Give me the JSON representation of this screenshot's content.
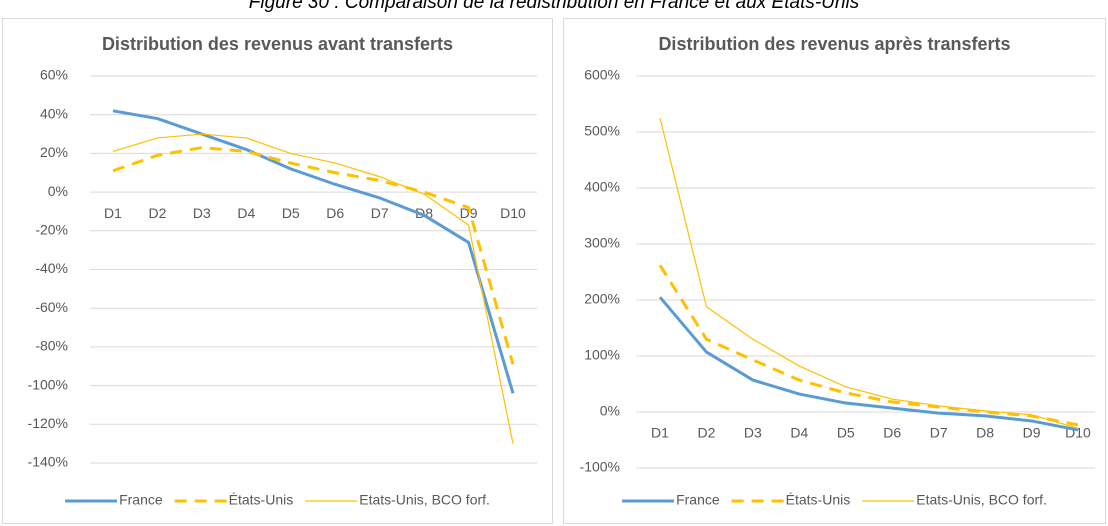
{
  "caption": "Figure 30 : Comparaison de la redistribution en France et aux Etats-Unis",
  "chart_data": [
    {
      "type": "line",
      "title": "Distribution des revenus avant transferts",
      "categories": [
        "D1",
        "D2",
        "D3",
        "D4",
        "D5",
        "D6",
        "D7",
        "D8",
        "D9",
        "D10"
      ],
      "ylim": [
        -140,
        60
      ],
      "yticks": [
        {
          "value": 60,
          "label": "60%"
        },
        {
          "value": 40,
          "label": "40%"
        },
        {
          "value": 20,
          "label": "20%"
        },
        {
          "value": 0,
          "label": "0%"
        },
        {
          "value": -20,
          "label": "-20%"
        },
        {
          "value": -40,
          "label": "-40%"
        },
        {
          "value": -60,
          "label": "-60%"
        },
        {
          "value": -80,
          "label": "-80%"
        },
        {
          "value": -100,
          "label": "-100%"
        },
        {
          "value": -120,
          "label": "-120%"
        },
        {
          "value": -140,
          "label": "-140%"
        }
      ],
      "grid": true,
      "legend": "bottom",
      "series": [
        {
          "name": "France",
          "color": "#5b9bd5",
          "line_width": 3,
          "dashed": false,
          "values": [
            42,
            38,
            30,
            22,
            12,
            4,
            -3,
            -12,
            -26,
            -104
          ]
        },
        {
          "name": "États-Unis",
          "color": "#ffc000",
          "line_width": 3,
          "dashed": true,
          "values": [
            11,
            19,
            23,
            21,
            15,
            10,
            6,
            0,
            -8,
            -89
          ]
        },
        {
          "name": "Etats-Unis, BCO forf.",
          "color": "#ffc000",
          "line_width": 1.2,
          "dashed": false,
          "values": [
            21,
            28,
            30,
            28,
            20,
            15,
            8,
            -1,
            -17,
            -130
          ]
        }
      ]
    },
    {
      "type": "line",
      "title": "Distribution des revenus après transferts",
      "categories": [
        "D1",
        "D2",
        "D3",
        "D4",
        "D5",
        "D6",
        "D7",
        "D8",
        "D9",
        "D10"
      ],
      "ylim": [
        -100,
        600
      ],
      "yticks": [
        {
          "value": 600,
          "label": "600%"
        },
        {
          "value": 500,
          "label": "500%"
        },
        {
          "value": 400,
          "label": "400%"
        },
        {
          "value": 300,
          "label": "300%"
        },
        {
          "value": 200,
          "label": "200%"
        },
        {
          "value": 100,
          "label": "100%"
        },
        {
          "value": 0,
          "label": "0%"
        },
        {
          "value": -100,
          "label": "-100%"
        }
      ],
      "grid": true,
      "legend": "bottom",
      "series": [
        {
          "name": "France",
          "color": "#5b9bd5",
          "line_width": 3,
          "dashed": false,
          "values": [
            205,
            107,
            57,
            32,
            16,
            7,
            -2,
            -7,
            -16,
            -32
          ]
        },
        {
          "name": "États-Unis",
          "color": "#ffc000",
          "line_width": 3,
          "dashed": true,
          "values": [
            262,
            130,
            93,
            57,
            34,
            18,
            9,
            0,
            -7,
            -23
          ]
        },
        {
          "name": "Etats-Unis, BCO forf.",
          "color": "#ffc000",
          "line_width": 1.2,
          "dashed": false,
          "values": [
            525,
            188,
            130,
            82,
            45,
            23,
            11,
            2,
            -5,
            -29
          ]
        }
      ]
    }
  ]
}
